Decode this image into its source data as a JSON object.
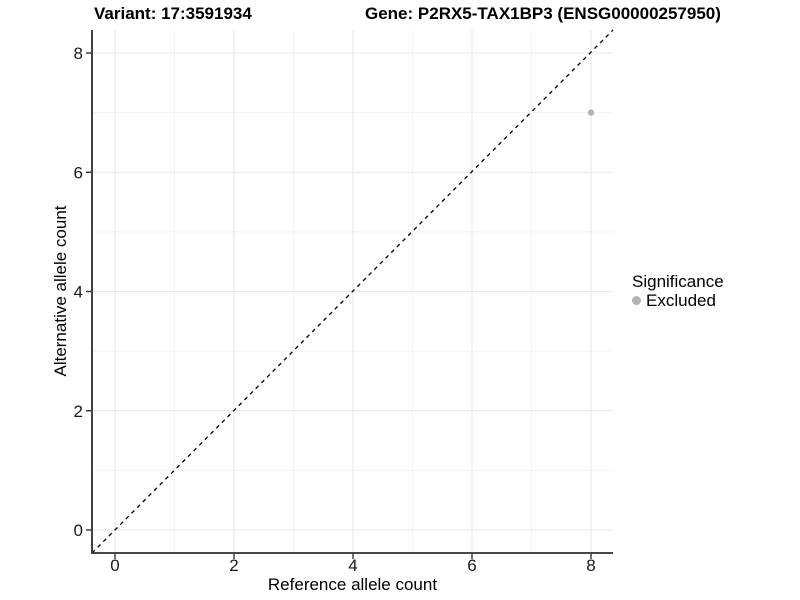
{
  "chart_data": {
    "type": "scatter",
    "titles": {
      "left": "Variant: 17:3591934",
      "right": "Gene: P2RX5-TAX1BP3 (ENSG00000257950)"
    },
    "xlabel": "Reference allele count",
    "ylabel": "Alternative allele count",
    "xlim": [
      -0.4,
      8.4
    ],
    "ylim": [
      -0.4,
      8.4
    ],
    "x_ticks": [
      0,
      2,
      4,
      6,
      8
    ],
    "y_ticks": [
      0,
      2,
      4,
      6,
      8
    ],
    "x_minor_ticks": [
      1,
      3,
      5,
      7
    ],
    "y_minor_ticks": [
      1,
      3,
      5,
      7
    ],
    "grid": "major+minor",
    "reference_line": {
      "type": "identity",
      "style": "dashed",
      "color": "#000000"
    },
    "points": [
      {
        "x": 8,
        "y": 7,
        "significance": "Excluded",
        "color": "#b4b4b4"
      }
    ],
    "legend": {
      "title": "Significance",
      "position": "right",
      "entries": [
        {
          "label": "Excluded",
          "color": "#b4b4b4"
        }
      ]
    }
  },
  "colors": {
    "background": "#ffffff",
    "grid_major": "#e8e8e8",
    "grid_minor": "#f3f3f3",
    "axis_line": "#2e2e2e",
    "tick_mark": "#333333",
    "tick_label": "#1a1a1a"
  }
}
